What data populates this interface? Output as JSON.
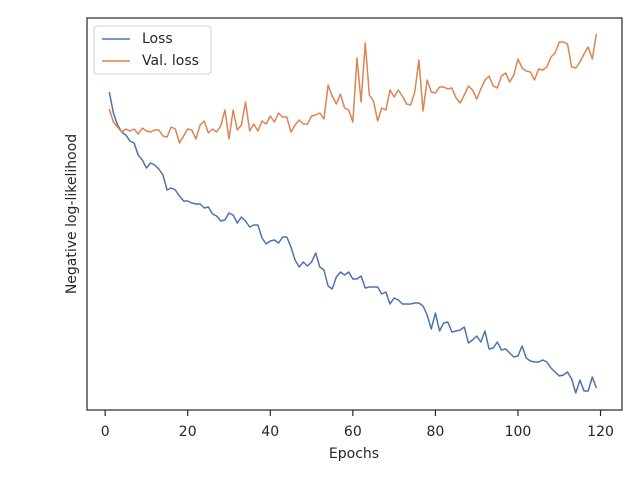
{
  "chart_data": {
    "type": "line",
    "xlabel": "Epochs",
    "ylabel": "Negative log-likelihood",
    "x": [
      1,
      2,
      3,
      4,
      5,
      6,
      7,
      8,
      9,
      10,
      11,
      12,
      13,
      14,
      15,
      16,
      17,
      18,
      19,
      20,
      21,
      22,
      23,
      24,
      25,
      26,
      27,
      28,
      29,
      30,
      31,
      32,
      33,
      34,
      35,
      36,
      37,
      38,
      39,
      40,
      41,
      42,
      43,
      44,
      45,
      46,
      47,
      48,
      49,
      50,
      51,
      52,
      53,
      54,
      55,
      56,
      57,
      58,
      59,
      60,
      61,
      62,
      63,
      64,
      65,
      66,
      67,
      68,
      69,
      70,
      71,
      72,
      73,
      74,
      75,
      76,
      77,
      78,
      79,
      80,
      81,
      82,
      83,
      84,
      85,
      86,
      87,
      88,
      89,
      90,
      91,
      92,
      93,
      94,
      95,
      96,
      97,
      98,
      99,
      100,
      101,
      102,
      103,
      104,
      105,
      106,
      107,
      108,
      109,
      110,
      111,
      112,
      113,
      114,
      115,
      116,
      117,
      118,
      119
    ],
    "series": [
      {
        "name": "Loss",
        "color": "#4c72b0",
        "values": [
          318,
          297,
          285,
          278,
          275,
          269,
          267,
          255,
          250,
          242,
          247,
          245,
          241,
          235,
          220,
          222,
          220,
          214,
          209,
          209,
          207,
          206,
          206,
          202,
          203,
          196,
          194,
          189,
          190,
          197,
          195,
          187,
          193,
          189,
          183,
          185,
          185,
          172,
          166,
          169,
          170,
          167,
          173,
          173,
          163,
          150,
          143,
          148,
          144,
          148,
          157,
          143,
          140,
          124,
          121,
          133,
          138,
          135,
          138,
          131,
          131,
          134,
          122,
          123,
          123,
          123,
          116,
          118,
          106,
          112,
          110,
          106,
          106,
          106,
          107,
          107,
          104,
          95,
          81,
          97,
          79,
          87,
          88,
          78,
          79,
          80,
          83,
          67,
          70,
          74,
          68,
          79,
          61,
          62,
          68,
          60,
          61,
          57,
          53,
          54,
          64,
          52,
          49,
          48,
          48,
          50,
          48,
          42,
          38,
          34,
          35,
          38,
          31,
          17,
          30,
          19,
          19,
          33,
          22
        ]
      },
      {
        "name": "Val. loss",
        "color": "#dd8452",
        "values": [
          301,
          288,
          283,
          278,
          281,
          279,
          281,
          276,
          282,
          279,
          278,
          280,
          280,
          274,
          273,
          283,
          281,
          267,
          274,
          281,
          280,
          271,
          285,
          289,
          277,
          281,
          278,
          284,
          300,
          271,
          300,
          280,
          285,
          308,
          279,
          286,
          279,
          289,
          286,
          294,
          288,
          297,
          293,
          293,
          278,
          285,
          290,
          286,
          286,
          294,
          295,
          297,
          291,
          325,
          314,
          306,
          316,
          302,
          300,
          288,
          352,
          308,
          367,
          315,
          309,
          289,
          302,
          300,
          320,
          313,
          320,
          314,
          306,
          305,
          318,
          350,
          299,
          330,
          318,
          317,
          323,
          323,
          321,
          322,
          312,
          307,
          315,
          324,
          320,
          311,
          321,
          330,
          334,
          324,
          322,
          334,
          337,
          328,
          335,
          351,
          342,
          339,
          338,
          330,
          341,
          340,
          343,
          353,
          357,
          368,
          368,
          366,
          343,
          342,
          348,
          356,
          363,
          351,
          376
        ]
      }
    ],
    "xlim": [
      -4.4,
      125.2
    ],
    "xticks": [
      0,
      20,
      40,
      60,
      80,
      100,
      120
    ],
    "ylim": [
      0,
      392
    ],
    "legend": "upper left"
  }
}
